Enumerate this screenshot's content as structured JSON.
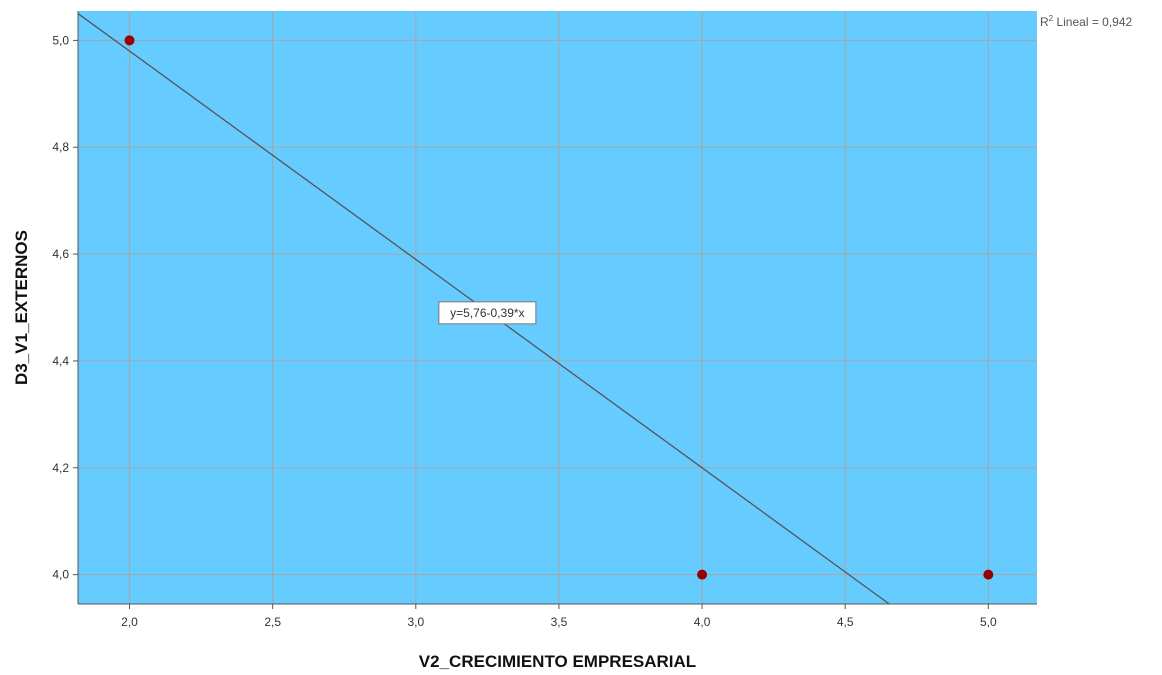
{
  "chart_data": {
    "type": "scatter",
    "xlabel": "V2_CRECIMIENTO EMPRESARIAL",
    "ylabel": "D3_V1_EXTERNOS",
    "xlim": [
      1.82,
      5.17
    ],
    "ylim": [
      3.945,
      5.055
    ],
    "xticks": [
      2.0,
      2.5,
      3.0,
      3.5,
      4.0,
      4.5,
      5.0
    ],
    "xtick_labels": [
      "2,0",
      "2,5",
      "3,0",
      "3,5",
      "4,0",
      "4,5",
      "5,0"
    ],
    "yticks": [
      4.0,
      4.2,
      4.4,
      4.6,
      4.8,
      5.0
    ],
    "ytick_labels": [
      "4,0",
      "4,2",
      "4,4",
      "4,6",
      "4,8",
      "5,0"
    ],
    "points": [
      {
        "x": 2.0,
        "y": 5.0
      },
      {
        "x": 4.0,
        "y": 4.0
      },
      {
        "x": 5.0,
        "y": 4.0
      }
    ],
    "fit_line": {
      "intercept": 5.76,
      "slope": -0.39,
      "label": "y=5,76-0,39*x"
    },
    "r2_prefix": "R",
    "r2_sup": "2",
    "r2_text": " Lineal = 0,942",
    "grid": true,
    "colors": {
      "plot_background": "#66ccff",
      "grid": "#a6a6a6",
      "marker": "#990000",
      "fit_line": "#555555"
    }
  }
}
